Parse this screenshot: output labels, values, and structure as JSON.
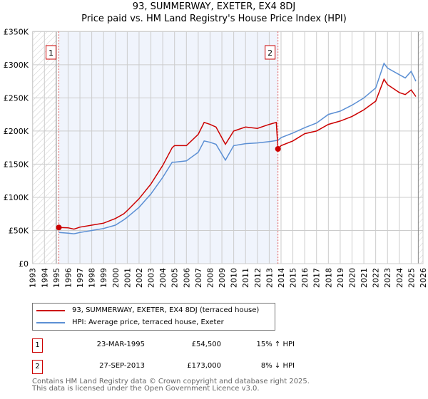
{
  "chart_data": {
    "type": "line",
    "title": "93, SUMMERWAY, EXETER, EX4 8DJ",
    "subtitle": "Price paid vs. HM Land Registry's House Price Index (HPI)",
    "xlim": [
      1993,
      2026
    ],
    "ylim": [
      0,
      350000
    ],
    "x_ticks": [
      "1993",
      "1994",
      "1995",
      "1996",
      "1997",
      "1998",
      "1999",
      "2000",
      "2001",
      "2002",
      "2003",
      "2004",
      "2005",
      "2006",
      "2007",
      "2008",
      "2009",
      "2010",
      "2011",
      "2012",
      "2013",
      "2014",
      "2015",
      "2016",
      "2017",
      "2018",
      "2019",
      "2020",
      "2021",
      "2022",
      "2023",
      "2024",
      "2025",
      "2026"
    ],
    "y_ticks": [
      {
        "v": 0,
        "label": "£0"
      },
      {
        "v": 50000,
        "label": "£50K"
      },
      {
        "v": 100000,
        "label": "£100K"
      },
      {
        "v": 150000,
        "label": "£150K"
      },
      {
        "v": 200000,
        "label": "£200K"
      },
      {
        "v": 250000,
        "label": "£250K"
      },
      {
        "v": 300000,
        "label": "£300K"
      },
      {
        "v": 350000,
        "label": "£350K"
      }
    ],
    "grid": true,
    "series": [
      {
        "name": "93, SUMMERWAY, EXETER, EX4 8DJ (terraced house)",
        "color": "#cc0000",
        "x": [
          1995.22,
          1996.0,
          1996.5,
          1997,
          1998,
          1999,
          2000,
          2000.7,
          2001,
          2002,
          2003,
          2004,
          2004.8,
          2005,
          2006,
          2007,
          2007.5,
          2008,
          2008.5,
          2009.3,
          2010,
          2011,
          2012,
          2013,
          2013.6,
          2013.74,
          2014,
          2015,
          2016,
          2017,
          2018,
          2019,
          2020,
          2021,
          2022,
          2022.7,
          2023,
          2024,
          2024.5,
          2025,
          2025.4
        ],
        "y": [
          54500,
          54000,
          52000,
          55000,
          58000,
          61000,
          68000,
          75000,
          80000,
          98000,
          120000,
          148000,
          175000,
          178000,
          178000,
          195000,
          213000,
          210000,
          206000,
          180000,
          200000,
          206000,
          204000,
          210000,
          213000,
          173000,
          178000,
          185000,
          196000,
          200000,
          210000,
          215000,
          222000,
          232000,
          245000,
          278000,
          270000,
          258000,
          255000,
          262000,
          252000
        ]
      },
      {
        "name": "HPI: Average price, terraced house, Exeter",
        "color": "#5b8fd4",
        "x": [
          1995.22,
          1996,
          1996.5,
          1997,
          1998,
          1999,
          2000,
          2000.7,
          2001,
          2002,
          2003,
          2004,
          2004.8,
          2005,
          2006,
          2007,
          2007.5,
          2008,
          2008.5,
          2009.3,
          2010,
          2011,
          2012,
          2013,
          2013.74,
          2014,
          2015,
          2016,
          2017,
          2018,
          2019,
          2020,
          2021,
          2022,
          2022.7,
          2023,
          2024,
          2024.5,
          2025,
          2025.4
        ],
        "y": [
          47000,
          46000,
          45000,
          47000,
          50000,
          53000,
          58000,
          66000,
          70000,
          85000,
          105000,
          130000,
          153000,
          153000,
          155000,
          168000,
          185000,
          183000,
          180000,
          156000,
          178000,
          181000,
          182000,
          184000,
          186000,
          190000,
          197000,
          205000,
          212000,
          225000,
          230000,
          239000,
          250000,
          265000,
          302000,
          295000,
          285000,
          280000,
          290000,
          275000
        ]
      }
    ],
    "sales": [
      {
        "label": "1",
        "x": 1995.22,
        "price": 54500
      },
      {
        "label": "2",
        "x": 2013.74,
        "price": 173000
      }
    ],
    "hatch_before": 1995,
    "hatch_after": 2025.6
  },
  "legend": {
    "property": "93, SUMMERWAY, EXETER, EX4 8DJ (terraced house)",
    "hpi": "HPI: Average price, terraced house, Exeter"
  },
  "sales_table": [
    {
      "num": "1",
      "date": "23-MAR-1995",
      "price": "£54,500",
      "hpi": "15% ↑ HPI"
    },
    {
      "num": "2",
      "date": "27-SEP-2013",
      "price": "£173,000",
      "hpi": "8% ↓ HPI"
    }
  ],
  "footer": {
    "line1": "Contains HM Land Registry data © Crown copyright and database right 2025.",
    "line2": "This data is licensed under the Open Government Licence v3.0."
  }
}
